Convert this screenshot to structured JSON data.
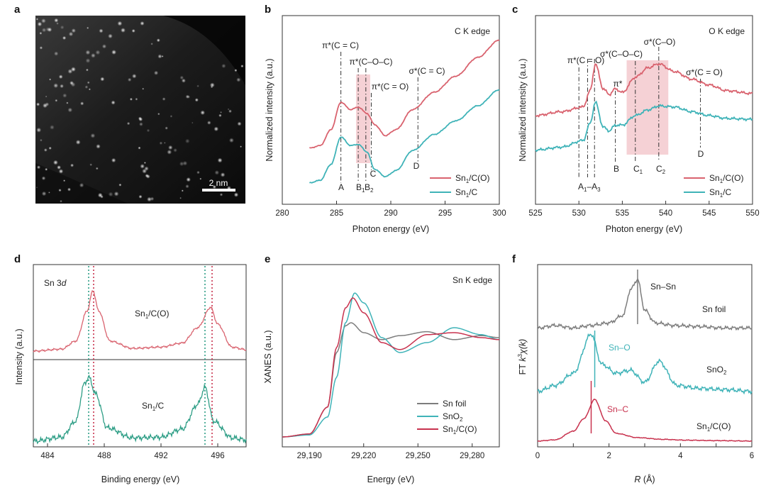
{
  "panels": {
    "a": "a",
    "b": "b",
    "c": "c",
    "d": "d",
    "e": "e",
    "f": "f"
  },
  "a": {
    "scalebar": "2 nm"
  },
  "b": {
    "title": "C K edge",
    "xlabel": "Photon energy (eV)",
    "ylabel": "Normalized intensity (a.u.)",
    "xticks": [
      "280",
      "285",
      "290",
      "295",
      "300"
    ],
    "annotations": [
      "π*(C = C)",
      "π*(C–O–C)",
      "π*(C = O)",
      "σ*(C = C)"
    ],
    "peaks": [
      "A",
      "B",
      "1",
      "B",
      "2",
      "C",
      "D"
    ],
    "legend": [
      {
        "base": "Sn",
        "sub": "1",
        "rest": "/C(O)"
      },
      {
        "base": "Sn",
        "sub": "1",
        "rest": "/C"
      }
    ]
  },
  "c": {
    "title": "O K edge",
    "xlabel": "Photon energy (eV)",
    "ylabel": "Normalized intensity (a.u.)",
    "xticks": [
      "525",
      "530",
      "535",
      "540",
      "545",
      "550"
    ],
    "annotations": [
      "π*(C = O)",
      "σ*(C–O–C)",
      "σ*(C–O)",
      "σ*(C = O)",
      "π*"
    ],
    "peaks": [
      "A",
      "1",
      "–A",
      "3",
      "B",
      "C",
      "1",
      "C",
      "2",
      "D"
    ],
    "legend": [
      {
        "base": "Sn",
        "sub": "1",
        "rest": "/C(O)"
      },
      {
        "base": "Sn",
        "sub": "1",
        "rest": "/C"
      }
    ]
  },
  "d": {
    "title_main": "Sn 3",
    "title_it": "d",
    "xlabel": "Binding energy (eV)",
    "ylabel": "Intensity (a.u.)",
    "xticks": [
      "484",
      "488",
      "492",
      "496"
    ],
    "labels": [
      {
        "base": "Sn",
        "sub": "1",
        "rest": "/C(O)"
      },
      {
        "base": "Sn",
        "sub": "1",
        "rest": "/C"
      }
    ]
  },
  "e": {
    "title": "Sn K edge",
    "xlabel": "Energy (eV)",
    "ylabel": "XANES (a.u.)",
    "xticks": [
      "29,190",
      "29,220",
      "29,250",
      "29,280"
    ],
    "legend": [
      {
        "base": "Sn foil",
        "sub": "",
        "rest": ""
      },
      {
        "base": "SnO",
        "sub": "2",
        "rest": ""
      },
      {
        "base": "Sn",
        "sub": "1",
        "rest": "/C(O)"
      }
    ]
  },
  "f": {
    "xlabel_it": "R",
    "xlabel_rest": " (Å)",
    "ylabel_a": "FT ",
    "ylabel_k": "k",
    "ylabel_sup": "3",
    "ylabel_chi": "χ(k)",
    "xticks": [
      "0",
      "2",
      "4",
      "6"
    ],
    "bond_labels": [
      "Sn–Sn",
      "Sn–O",
      "Sn–C"
    ],
    "sample_labels": [
      {
        "base": "Sn foil",
        "sub": "",
        "rest": ""
      },
      {
        "base": "SnO",
        "sub": "2",
        "rest": ""
      },
      {
        "base": "Sn",
        "sub": "1",
        "rest": "/C(O)"
      }
    ]
  },
  "colors": {
    "red": "#d9636f",
    "teal": "#3fb3b8",
    "grey": "#7d7d7d",
    "crimson": "#c8324e",
    "green": "#2e9e86",
    "shade": "#f2c6cb"
  },
  "chart_data": [
    {
      "panel": "b",
      "type": "line",
      "title": "C K edge",
      "xlabel": "Photon energy (eV)",
      "ylabel": "Normalized intensity (a.u.)",
      "xlim": [
        280,
        300
      ],
      "series": [
        {
          "name": "Sn1/C(O)",
          "x": [
            282.5,
            283.5,
            284.5,
            285.4,
            286.3,
            287.0,
            287.8,
            288.5,
            289.5,
            290.5,
            292,
            294,
            296,
            298,
            300
          ],
          "y": [
            0.35,
            0.37,
            0.5,
            0.72,
            0.66,
            0.68,
            0.63,
            0.54,
            0.45,
            0.5,
            0.66,
            0.8,
            0.93,
            1.08,
            1.22
          ]
        },
        {
          "name": "Sn1/C",
          "x": [
            282.5,
            283.5,
            284.5,
            285.4,
            286.3,
            287.0,
            287.8,
            288.5,
            289.5,
            290.5,
            292,
            294,
            296,
            298,
            300
          ],
          "y": [
            0.07,
            0.09,
            0.22,
            0.44,
            0.37,
            0.38,
            0.32,
            0.18,
            0.12,
            0.17,
            0.33,
            0.46,
            0.57,
            0.69,
            0.82
          ]
        }
      ],
      "markers": [
        {
          "label": "A",
          "x": 285.4
        },
        {
          "label": "B1",
          "x": 287.0
        },
        {
          "label": "B2",
          "x": 287.7
        },
        {
          "label": "C",
          "x": 288.2
        },
        {
          "label": "D",
          "x": 292.5
        }
      ],
      "shaded": [
        286.8,
        288.1
      ]
    },
    {
      "panel": "c",
      "type": "line",
      "title": "O K edge",
      "xlabel": "Photon energy (eV)",
      "ylabel": "Normalized intensity (a.u.)",
      "xlim": [
        525,
        550
      ],
      "series": [
        {
          "name": "Sn1/C(O)",
          "x": [
            525,
            528,
            530.5,
            531.3,
            531.9,
            532.8,
            533.5,
            534.2,
            535,
            536.5,
            538,
            539.2,
            541,
            543,
            545,
            547,
            550
          ],
          "y": [
            0.46,
            0.5,
            0.55,
            0.72,
            1.0,
            0.74,
            0.68,
            0.74,
            0.7,
            0.86,
            0.96,
            1.0,
            0.92,
            0.84,
            0.78,
            0.72,
            0.69
          ]
        },
        {
          "name": "Sn1/C",
          "x": [
            525,
            528,
            530.5,
            531.3,
            531.9,
            532.8,
            533.5,
            534.2,
            535,
            536.5,
            538,
            539.2,
            541,
            543,
            545,
            547,
            550
          ],
          "y": [
            0.1,
            0.13,
            0.2,
            0.38,
            0.6,
            0.34,
            0.3,
            0.36,
            0.36,
            0.46,
            0.52,
            0.56,
            0.55,
            0.5,
            0.46,
            0.43,
            0.42
          ]
        }
      ],
      "markers": [
        {
          "label": "A1–A3",
          "x": 530.0
        },
        {
          "label": "",
          "x": 531.0
        },
        {
          "label": "",
          "x": 531.8
        },
        {
          "label": "B",
          "x": 534.2
        },
        {
          "label": "C1",
          "x": 536.5
        },
        {
          "label": "C2",
          "x": 539.2
        },
        {
          "label": "D",
          "x": 544.0
        }
      ],
      "shaded": [
        535.5,
        540.3
      ]
    },
    {
      "panel": "d",
      "type": "line",
      "title": "Sn 3d",
      "xlabel": "Binding energy (eV)",
      "ylabel": "Intensity (a.u.)",
      "xlim": [
        483,
        498
      ],
      "series": [
        {
          "name": "Sn1/C(O)",
          "x": [
            483,
            485,
            486,
            486.8,
            487.2,
            487.6,
            488.4,
            490,
            492,
            493.5,
            494.6,
            495.5,
            496,
            497,
            498
          ],
          "y": [
            0.0,
            0.03,
            0.15,
            0.6,
            0.9,
            0.6,
            0.15,
            0.04,
            0.06,
            0.12,
            0.35,
            0.65,
            0.4,
            0.06,
            0.02
          ]
        },
        {
          "name": "Sn1/C",
          "x": [
            483,
            485,
            486,
            486.6,
            486.9,
            487.4,
            488.2,
            490,
            492,
            493.5,
            494.6,
            495.1,
            495.7,
            497,
            498
          ],
          "y": [
            0.0,
            0.06,
            0.3,
            0.85,
            0.95,
            0.7,
            0.2,
            0.05,
            0.06,
            0.18,
            0.55,
            0.8,
            0.3,
            0.05,
            0.02
          ]
        }
      ],
      "markers": [
        486.9,
        487.2,
        495.1,
        495.6
      ]
    },
    {
      "panel": "e",
      "type": "line",
      "title": "Sn K edge",
      "xlabel": "Energy (eV)",
      "ylabel": "XANES (a.u.)",
      "xlim": [
        29175,
        29295
      ],
      "series": [
        {
          "name": "Sn foil",
          "x": [
            29175,
            29190,
            29200,
            29205,
            29210,
            29213,
            29220,
            29230,
            29240,
            29255,
            29270,
            29285,
            29295
          ],
          "y": [
            0.0,
            0.03,
            0.3,
            0.85,
            1.12,
            1.15,
            1.05,
            0.98,
            1.02,
            1.06,
            0.98,
            1.02,
            1.0
          ]
        },
        {
          "name": "SnO2",
          "x": [
            29175,
            29190,
            29200,
            29205,
            29210,
            29215,
            29220,
            29230,
            29240,
            29255,
            29270,
            29285,
            29295
          ],
          "y": [
            0.0,
            0.02,
            0.2,
            0.6,
            1.15,
            1.45,
            1.35,
            1.0,
            0.85,
            0.95,
            1.1,
            1.03,
            0.98
          ]
        },
        {
          "name": "Sn1/C(O)",
          "x": [
            29175,
            29190,
            29200,
            29205,
            29210,
            29214,
            29220,
            29230,
            29240,
            29255,
            29270,
            29285,
            29295
          ],
          "y": [
            0.0,
            0.03,
            0.3,
            0.9,
            1.3,
            1.4,
            1.25,
            0.95,
            0.88,
            1.03,
            1.05,
            1.0,
            0.98
          ]
        }
      ]
    },
    {
      "panel": "f",
      "type": "line",
      "xlabel": "R (Å)",
      "ylabel": "FT k3χ(k)",
      "xlim": [
        0,
        6
      ],
      "series": [
        {
          "name": "Sn foil",
          "x": [
            0,
            0.5,
            1.0,
            1.5,
            2.0,
            2.4,
            2.6,
            2.8,
            3.0,
            3.3,
            3.8,
            4.5,
            5.2,
            6.0
          ],
          "y": [
            0.05,
            0.1,
            0.05,
            0.1,
            0.15,
            0.3,
            0.8,
            1.0,
            0.4,
            0.15,
            0.1,
            0.08,
            0.05,
            0.05
          ]
        },
        {
          "name": "SnO2",
          "x": [
            0,
            0.5,
            1.0,
            1.5,
            1.8,
            2.2,
            2.6,
            3.0,
            3.4,
            3.9,
            4.5,
            5.2,
            6.0
          ],
          "y": [
            0.05,
            0.15,
            0.35,
            1.0,
            0.5,
            0.35,
            0.4,
            0.2,
            0.55,
            0.15,
            0.1,
            0.08,
            0.05
          ]
        },
        {
          "name": "Sn1/C(O)",
          "x": [
            0,
            0.5,
            1.0,
            1.3,
            1.6,
            1.9,
            2.2,
            2.8,
            3.5,
            4.2,
            5.0,
            6.0
          ],
          "y": [
            0.02,
            0.05,
            0.25,
            0.55,
            1.0,
            0.5,
            0.2,
            0.1,
            0.06,
            0.04,
            0.03,
            0.02
          ]
        }
      ],
      "markers": [
        {
          "label": "Sn–Sn",
          "x": 2.8
        },
        {
          "label": "Sn–O",
          "x": 1.6
        },
        {
          "label": "Sn–C",
          "x": 1.5
        }
      ]
    }
  ]
}
